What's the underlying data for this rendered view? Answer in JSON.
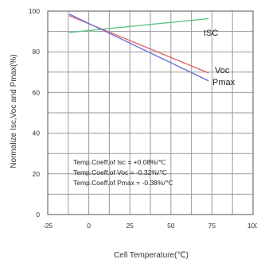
{
  "chart_data": {
    "type": "line",
    "xlabel": "Cell Temperature(℃)",
    "ylabel": "Normalize Isc,Voc and Pmax(%)",
    "xlim": [
      -25,
      100
    ],
    "ylim": [
      0,
      100
    ],
    "x_ticks": [
      "-25",
      "0",
      "25",
      "50",
      "75",
      "100"
    ],
    "y_ticks": [
      "0",
      "20",
      "40",
      "60",
      "80",
      "100"
    ],
    "grid": true,
    "series": [
      {
        "name": "ISC",
        "color": "#5cc48a",
        "x": [
          -12,
          73
        ],
        "y": [
          89.5,
          96.3
        ]
      },
      {
        "name": "Voc",
        "color": "#e06767",
        "x": [
          -12,
          73
        ],
        "y": [
          97.8,
          69.6
        ]
      },
      {
        "name": "Pmax",
        "color": "#6e74d8",
        "x": [
          -12,
          73
        ],
        "y": [
          98.6,
          65.7
        ]
      }
    ],
    "annotations": [
      "Temp.Coeff.of Isc = +0.08%/℃",
      "Temp.Coeff.of Voc = -0.32%/℃",
      "Temp.Coeff.of Pmax = -0.38%/℃"
    ]
  }
}
